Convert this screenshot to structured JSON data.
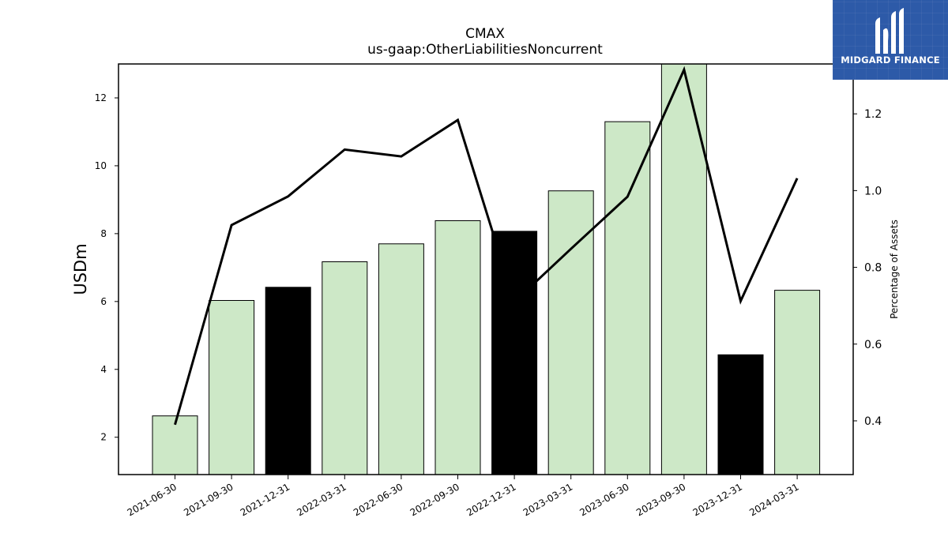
{
  "brand": {
    "name": "MIDGARD FINANCE",
    "bg_color": "#2d5aa8"
  },
  "chart_data": {
    "type": "bar",
    "title": "CMAX",
    "subtitle": "us-gaap:OtherLiabilitiesNoncurrent",
    "ylabel": "USDm",
    "y2label": "Percentage of Assets",
    "categories": [
      "2021-06-30",
      "2021-09-30",
      "2021-12-31",
      "2022-03-31",
      "2022-06-30",
      "2022-09-30",
      "2022-12-31",
      "2023-03-31",
      "2023-06-30",
      "2023-09-30",
      "2023-12-31",
      "2024-03-31"
    ],
    "bar_values": [
      2.63,
      6.03,
      6.42,
      7.17,
      7.7,
      8.38,
      8.07,
      9.26,
      11.3,
      13.2,
      4.43,
      6.33
    ],
    "bar_colors": [
      "#cde8c7",
      "#cde8c7",
      "#000000",
      "#cde8c7",
      "#cde8c7",
      "#cde8c7",
      "#000000",
      "#cde8c7",
      "#cde8c7",
      "#cde8c7",
      "#000000",
      "#cde8c7"
    ],
    "line_values": [
      0.39,
      0.91,
      0.985,
      1.107,
      1.089,
      1.184,
      0.71,
      0.848,
      0.984,
      1.315,
      0.712,
      1.032
    ],
    "line_color": "#000000",
    "ylim": [
      0.9,
      13.0
    ],
    "y2lim": [
      0.26,
      1.33
    ],
    "yticks": [
      2,
      4,
      6,
      8,
      10,
      12
    ],
    "y2ticks": [
      0.4,
      0.6,
      0.8,
      1.0,
      1.2
    ],
    "y2tick_labels": [
      "0.4",
      "0.6",
      "0.8",
      "1.0",
      "1.2"
    ],
    "grid": false,
    "legend": "none"
  }
}
